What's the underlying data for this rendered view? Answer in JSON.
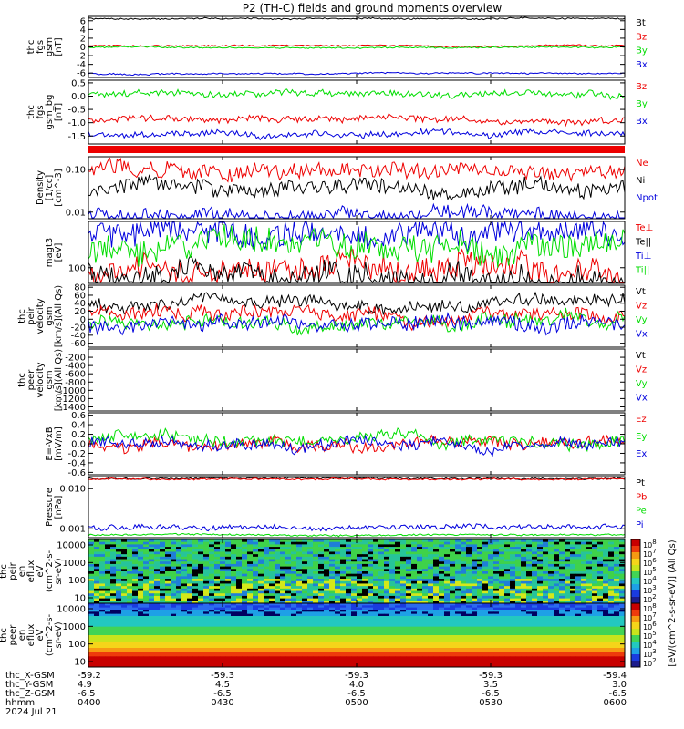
{
  "title": "P2 (TH-C) fields and ground moments overview",
  "colors": {
    "black": "#000000",
    "red": "#ee0000",
    "green": "#00dd00",
    "blue": "#0000dd"
  },
  "chart_data": [
    {
      "type": "line",
      "id": "fgs_gsm",
      "ylabel": [
        "thc",
        "fgs",
        "gsm",
        "[nT]"
      ],
      "yticks": [
        "6",
        "4",
        "2",
        "0",
        "-2",
        "-4",
        "-6"
      ],
      "ylim": [
        -7,
        7
      ],
      "series": [
        {
          "name": "Bt",
          "color": "black",
          "level": 6.5
        },
        {
          "name": "Bz",
          "color": "red",
          "level": 0.3
        },
        {
          "name": "By",
          "color": "green",
          "level": -0.1
        },
        {
          "name": "Bx",
          "color": "blue",
          "level": -6.1
        }
      ]
    },
    {
      "type": "line",
      "id": "fgs_gse",
      "ylabel": [
        "thc",
        "fgs",
        "gsm_bg",
        "[nT]"
      ],
      "yticks": [
        "0.5",
        "0.0",
        "-0.5",
        "-1.0",
        "-1.5"
      ],
      "ylim": [
        -1.8,
        0.6
      ],
      "series": [
        {
          "name": "Bz",
          "color": "red",
          "level": -0.9
        },
        {
          "name": "By",
          "color": "green",
          "level": 0.1
        },
        {
          "name": "Bx",
          "color": "blue",
          "level": -1.4
        }
      ]
    },
    {
      "type": "bar",
      "id": "mode_bar",
      "color": "red"
    },
    {
      "type": "line",
      "id": "density",
      "ylabel": [
        "Density",
        "[1/cc]",
        "[cm^-3]"
      ],
      "yticks": [
        "0.10",
        "0.01"
      ],
      "scale": "log",
      "ylim": [
        0.007,
        0.2
      ],
      "series": [
        {
          "name": "Ne",
          "color": "red",
          "level": 0.09
        },
        {
          "name": "Ni",
          "color": "black",
          "level": 0.035
        },
        {
          "name": "Npot",
          "color": "blue",
          "level": 0.008
        }
      ]
    },
    {
      "type": "line",
      "id": "temperature",
      "ylabel": [
        "magt3",
        "[eV]"
      ],
      "yticks": [
        "100"
      ],
      "scale": "log",
      "ylim": [
        60,
        450
      ],
      "series": [
        {
          "name": "Te⊥",
          "color": "red",
          "level": 95
        },
        {
          "name": "Te||",
          "color": "black",
          "level": 80
        },
        {
          "name": "Ti⊥",
          "color": "blue",
          "level": 300
        },
        {
          "name": "Ti||",
          "color": "green",
          "level": 190
        }
      ]
    },
    {
      "type": "line",
      "id": "peir_velocity",
      "ylabel": [
        "thc",
        "peir",
        "velocity",
        "gsm",
        "[km/s](All Qs)"
      ],
      "yticks": [
        "80",
        "60",
        "40",
        "20",
        "0",
        "-20",
        "-40",
        "-60"
      ],
      "ylim": [
        -70,
        85
      ],
      "series": [
        {
          "name": "Vt",
          "color": "black",
          "level": 45
        },
        {
          "name": "Vz",
          "color": "red",
          "level": 10
        },
        {
          "name": "Vy",
          "color": "green",
          "level": -5
        },
        {
          "name": "Vx",
          "color": "blue",
          "level": -15
        }
      ]
    },
    {
      "type": "line",
      "id": "peer_velocity",
      "ylabel": [
        "thc",
        "peer",
        "velocity",
        "gsm",
        "[km/s](All Qs)"
      ],
      "yticks": [
        "-200",
        "-400",
        "-600",
        "-800",
        "-1000",
        "-1200",
        "-1400"
      ],
      "ylim": [
        -1500,
        0
      ],
      "series": [
        {
          "name": "Vt",
          "color": "black"
        },
        {
          "name": "Vz",
          "color": "red"
        },
        {
          "name": "Vy",
          "color": "green"
        },
        {
          "name": "Vx",
          "color": "blue"
        }
      ]
    },
    {
      "type": "line",
      "id": "efield",
      "ylabel": [
        "E=-VxB",
        "[mV/m]"
      ],
      "yticks": [
        "0.6",
        "0.4",
        "0.2",
        "0.0",
        "-0.2",
        "-0.4",
        "-0.6"
      ],
      "ylim": [
        -0.65,
        0.65
      ],
      "series": [
        {
          "name": "Ez",
          "color": "red",
          "level": 0.0
        },
        {
          "name": "Ey",
          "color": "green",
          "level": 0.1
        },
        {
          "name": "Ex",
          "color": "blue",
          "level": 0.0
        }
      ]
    },
    {
      "type": "line",
      "id": "pressure",
      "ylabel": [
        "Pressure",
        "[nPa]"
      ],
      "yticks": [
        "0.010",
        "0.001"
      ],
      "scale": "log",
      "ylim": [
        0.0006,
        0.02
      ],
      "series": [
        {
          "name": "Pt",
          "color": "black",
          "level": 0.018
        },
        {
          "name": "Pb",
          "color": "red",
          "level": 0.017
        },
        {
          "name": "Pe",
          "color": "green",
          "level": 0.0007
        },
        {
          "name": "Pi",
          "color": "blue",
          "level": 0.0011
        }
      ]
    },
    {
      "type": "heatmap",
      "id": "peir_spectrogram",
      "ylabel": [
        "thc",
        "peir",
        "en",
        "eflux",
        "eV",
        "(cm^2-s-",
        "sr-eV)"
      ],
      "yticks": [
        "10000",
        "1000",
        "100",
        "10"
      ]
    },
    {
      "type": "heatmap",
      "id": "peer_spectrogram",
      "ylabel": [
        "thc",
        "peer",
        "en",
        "eflux",
        "eV",
        "(cm^2-s-",
        "sr-eV)"
      ],
      "yticks": [
        "10000",
        "1000",
        "100",
        "10"
      ]
    }
  ],
  "colorbar": {
    "label": "[eV/(cm^2-s-sr-eV)] (All Qs)",
    "upper_ticks": [
      "10^8",
      "10^7",
      "10^6",
      "10^5",
      "10^4",
      "10^3",
      "10^2"
    ],
    "lower_ticks": [
      "10^8",
      "10^7",
      "10^6",
      "10^5",
      "10^4",
      "10^3",
      "10^2"
    ]
  },
  "x_axis": {
    "row_labels": [
      "thc_X-GSM",
      "thc_Y-GSM",
      "thc_Z-GSM",
      "hhmm",
      "2024 Jul 21"
    ],
    "columns": [
      {
        "values": [
          "-59.2",
          "4.9",
          "-6.5",
          "0400"
        ]
      },
      {
        "values": [
          "-59.3",
          "4.5",
          "-6.5",
          "0430"
        ]
      },
      {
        "values": [
          "-59.3",
          "4.0",
          "-6.5",
          "0500"
        ]
      },
      {
        "values": [
          "-59.3",
          "3.5",
          "-6.5",
          "0530"
        ]
      },
      {
        "values": [
          "-59.4",
          "3.0",
          "-6.5",
          "0600"
        ]
      }
    ]
  }
}
